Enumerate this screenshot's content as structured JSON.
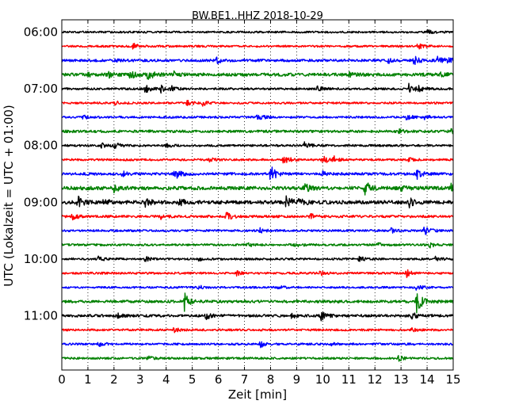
{
  "chart_data": {
    "type": "line",
    "title": "BW.BE1..HHZ 2018-10-29",
    "xlabel": "Zeit  [min]",
    "ylabel": "UTC (Lokalzeit = UTC + 01:00)",
    "xlim": [
      0,
      15
    ],
    "x_ticks": [
      "0",
      "1",
      "2",
      "3",
      "4",
      "5",
      "6",
      "7",
      "8",
      "9",
      "10",
      "11",
      "12",
      "13",
      "14",
      "15"
    ],
    "y_tick_labels": [
      "06:00",
      "07:00",
      "08:00",
      "09:00",
      "10:00",
      "11:00"
    ],
    "grid": "dotted vertical lines at each minute",
    "trace_interval_minutes": 15,
    "color_cycle": [
      "#000000",
      "#ff0000",
      "#0000ff",
      "#008000"
    ],
    "series": [
      {
        "start": "06:00",
        "color": "#000000",
        "noise": 1.2,
        "events": [
          [
            14.0,
            2.5
          ]
        ]
      },
      {
        "start": "06:15",
        "color": "#ff0000",
        "noise": 1.2,
        "events": [
          [
            2.7,
            4
          ],
          [
            13.6,
            4
          ]
        ]
      },
      {
        "start": "06:30",
        "color": "#0000ff",
        "noise": 1.6,
        "events": [
          [
            2.0,
            2
          ],
          [
            5.9,
            4
          ],
          [
            12.5,
            3
          ],
          [
            13.5,
            5
          ],
          [
            14.4,
            7
          ],
          [
            14.8,
            3
          ]
        ]
      },
      {
        "start": "06:45",
        "color": "#008000",
        "noise": 2.0,
        "events": [
          [
            1.0,
            3
          ],
          [
            1.8,
            3
          ],
          [
            2.6,
            5
          ],
          [
            3.3,
            6
          ],
          [
            4.3,
            3
          ],
          [
            11.0,
            2
          ],
          [
            14.5,
            2
          ]
        ]
      },
      {
        "start": "07:00",
        "color": "#000000",
        "noise": 1.3,
        "events": [
          [
            3.2,
            5
          ],
          [
            3.8,
            4
          ],
          [
            4.2,
            3
          ],
          [
            9.8,
            3
          ],
          [
            13.3,
            6
          ],
          [
            13.6,
            4
          ]
        ]
      },
      {
        "start": "07:15",
        "color": "#ff0000",
        "noise": 1.2,
        "events": [
          [
            2.0,
            2.5
          ],
          [
            4.8,
            3
          ],
          [
            5.4,
            3
          ]
        ]
      },
      {
        "start": "07:30",
        "color": "#0000ff",
        "noise": 1.3,
        "events": [
          [
            0.8,
            2
          ],
          [
            7.5,
            5
          ],
          [
            13.2,
            3
          ],
          [
            13.9,
            2.5
          ]
        ]
      },
      {
        "start": "07:45",
        "color": "#008000",
        "noise": 1.6,
        "events": [
          [
            12.9,
            3
          ],
          [
            14.9,
            3
          ]
        ]
      },
      {
        "start": "08:00",
        "color": "#000000",
        "noise": 1.3,
        "events": [
          [
            1.5,
            3
          ],
          [
            2.0,
            5
          ],
          [
            4.0,
            2
          ],
          [
            9.3,
            4
          ]
        ]
      },
      {
        "start": "08:15",
        "color": "#ff0000",
        "noise": 1.3,
        "events": [
          [
            5.6,
            3
          ],
          [
            8.5,
            7
          ],
          [
            10.0,
            6
          ],
          [
            10.4,
            4
          ],
          [
            13.3,
            2
          ]
        ]
      },
      {
        "start": "08:30",
        "color": "#0000ff",
        "noise": 1.6,
        "events": [
          [
            2.3,
            3
          ],
          [
            4.3,
            9
          ],
          [
            8.0,
            11
          ],
          [
            10.0,
            3
          ],
          [
            13.6,
            6
          ]
        ]
      },
      {
        "start": "08:45",
        "color": "#008000",
        "noise": 2.2,
        "events": [
          [
            2.0,
            4
          ],
          [
            9.3,
            5
          ],
          [
            11.6,
            10
          ],
          [
            13.0,
            3
          ],
          [
            14.9,
            5
          ]
        ]
      },
      {
        "start": "09:00",
        "color": "#000000",
        "noise": 2.2,
        "events": [
          [
            0.6,
            8
          ],
          [
            1.6,
            4
          ],
          [
            3.2,
            6
          ],
          [
            4.5,
            4
          ],
          [
            8.6,
            8
          ],
          [
            9.1,
            5
          ],
          [
            13.3,
            6
          ]
        ]
      },
      {
        "start": "09:15",
        "color": "#ff0000",
        "noise": 1.5,
        "events": [
          [
            0.4,
            4
          ],
          [
            3.8,
            3
          ],
          [
            6.3,
            5
          ],
          [
            9.5,
            3
          ]
        ]
      },
      {
        "start": "09:30",
        "color": "#0000ff",
        "noise": 1.3,
        "events": [
          [
            7.6,
            2.5
          ],
          [
            12.6,
            3
          ],
          [
            13.9,
            6
          ]
        ]
      },
      {
        "start": "09:45",
        "color": "#008000",
        "noise": 1.3,
        "events": [
          [
            7.1,
            2.5
          ],
          [
            8.9,
            3
          ],
          [
            12.1,
            2.5
          ],
          [
            14.1,
            3
          ]
        ]
      },
      {
        "start": "10:00",
        "color": "#000000",
        "noise": 1.3,
        "events": [
          [
            1.4,
            2.5
          ],
          [
            3.2,
            3
          ],
          [
            5.2,
            2.5
          ],
          [
            11.4,
            2.5
          ],
          [
            14.3,
            2.5
          ]
        ]
      },
      {
        "start": "10:15",
        "color": "#ff0000",
        "noise": 1.3,
        "events": [
          [
            6.7,
            2.5
          ],
          [
            9.9,
            2.5
          ],
          [
            13.2,
            5
          ]
        ]
      },
      {
        "start": "10:30",
        "color": "#0000ff",
        "noise": 1.2,
        "events": [
          [
            5.2,
            3
          ],
          [
            8.3,
            2.5
          ],
          [
            13.6,
            4
          ]
        ]
      },
      {
        "start": "10:45",
        "color": "#008000",
        "noise": 1.7,
        "events": [
          [
            4.7,
            11
          ],
          [
            13.6,
            13
          ]
        ]
      },
      {
        "start": "11:00",
        "color": "#000000",
        "noise": 1.6,
        "events": [
          [
            2.1,
            3
          ],
          [
            5.5,
            5
          ],
          [
            8.8,
            3
          ],
          [
            9.9,
            6
          ],
          [
            13.4,
            4
          ]
        ]
      },
      {
        "start": "11:15",
        "color": "#ff0000",
        "noise": 1.3,
        "events": [
          [
            4.3,
            3
          ],
          [
            13.4,
            3
          ]
        ]
      },
      {
        "start": "11:30",
        "color": "#0000ff",
        "noise": 1.3,
        "events": [
          [
            1.4,
            3
          ],
          [
            7.6,
            4
          ],
          [
            10.3,
            2
          ]
        ]
      },
      {
        "start": "11:45",
        "color": "#008000",
        "noise": 1.3,
        "events": [
          [
            3.3,
            2.5
          ],
          [
            12.9,
            3
          ]
        ]
      }
    ]
  }
}
